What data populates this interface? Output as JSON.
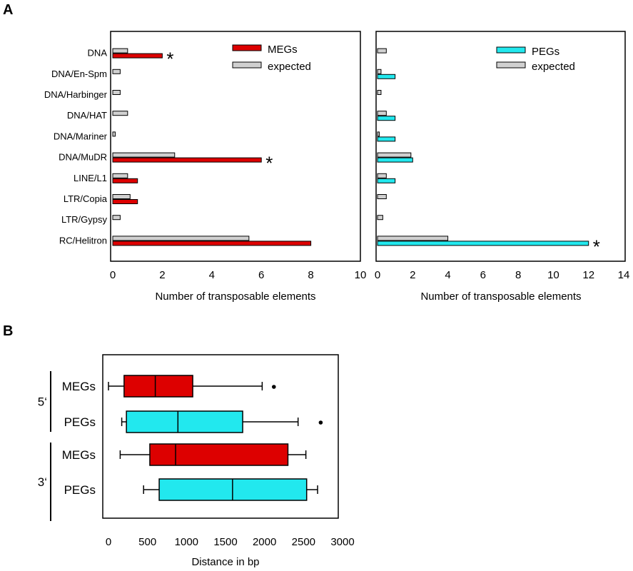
{
  "figure": {
    "panel_a_label": "A",
    "panel_b_label": "B"
  },
  "colors": {
    "megs": "#dd0000",
    "pegs": "#22e8ee",
    "expected": "#d0d0d0",
    "stroke": "#000000"
  },
  "chart_data": [
    {
      "id": "A-left",
      "type": "bar",
      "orientation": "horizontal",
      "categories": [
        "DNA",
        "DNA/En-Spm",
        "DNA/Harbinger",
        "DNA/HAT",
        "DNA/Mariner",
        "DNA/MuDR",
        "LINE/L1",
        "LTR/Copia",
        "LTR/Gypsy",
        "RC/Helitron"
      ],
      "series": [
        {
          "name": "MEGs",
          "values": [
            2,
            0,
            0,
            0,
            0,
            6,
            1,
            1,
            0,
            8
          ]
        },
        {
          "name": "expected",
          "values": [
            0.6,
            0.3,
            0.3,
            0.6,
            0.1,
            2.5,
            0.6,
            0.7,
            0.3,
            5.5
          ]
        }
      ],
      "significant": [
        "DNA",
        "DNA/MuDR"
      ],
      "significance_marker": "*",
      "xlabel": "Number of transposable elements",
      "xlim": [
        0,
        10
      ],
      "xticks": [
        "0",
        "2",
        "4",
        "6",
        "8",
        "10"
      ],
      "legend": "top-right"
    },
    {
      "id": "A-right",
      "type": "bar",
      "orientation": "horizontal",
      "categories": [
        "DNA",
        "DNA/En-Spm",
        "DNA/Harbinger",
        "DNA/HAT",
        "DNA/Mariner",
        "DNA/MuDR",
        "LINE/L1",
        "LTR/Copia",
        "LTR/Gypsy",
        "RC/Helitron"
      ],
      "series": [
        {
          "name": "PEGs",
          "values": [
            0,
            1,
            0,
            1,
            1,
            2,
            1,
            0,
            0,
            12
          ]
        },
        {
          "name": "expected",
          "values": [
            0.5,
            0.2,
            0.2,
            0.5,
            0.1,
            1.9,
            0.5,
            0.5,
            0.3,
            4
          ]
        }
      ],
      "significant": [
        "RC/Helitron"
      ],
      "significance_marker": "*",
      "xlabel": "Number of transposable elements",
      "xlim": [
        0,
        14
      ],
      "xticks": [
        "0",
        "2",
        "4",
        "6",
        "8",
        "10",
        "12",
        "14"
      ],
      "legend": "top-right"
    },
    {
      "id": "B",
      "type": "box",
      "orientation": "horizontal",
      "groups": [
        {
          "label": "5‘",
          "rows": [
            "MEGs",
            "PEGs"
          ]
        },
        {
          "label": "3‘",
          "rows": [
            "MEGs",
            "PEGs"
          ]
        }
      ],
      "boxes": [
        {
          "name": "MEGs",
          "end": "5‘",
          "whisker_low": 0,
          "q1": 200,
          "median": 600,
          "q3": 1080,
          "whisker_high": 1970,
          "outliers": [
            2120
          ]
        },
        {
          "name": "PEGs",
          "end": "5‘",
          "whisker_low": 170,
          "q1": 230,
          "median": 890,
          "q3": 1720,
          "whisker_high": 2430,
          "outliers": [
            2720
          ]
        },
        {
          "name": "MEGs",
          "end": "3‘",
          "whisker_low": 150,
          "q1": 530,
          "median": 860,
          "q3": 2300,
          "whisker_high": 2530,
          "outliers": []
        },
        {
          "name": "PEGs",
          "end": "3‘",
          "whisker_low": 450,
          "q1": 650,
          "median": 1590,
          "q3": 2540,
          "whisker_high": 2680,
          "outliers": []
        }
      ],
      "xlabel": "Distance in bp",
      "xlim": [
        0,
        3000
      ],
      "xticks": [
        "0",
        "500",
        "1000",
        "1500",
        "2000",
        "2500",
        "3000"
      ]
    }
  ]
}
